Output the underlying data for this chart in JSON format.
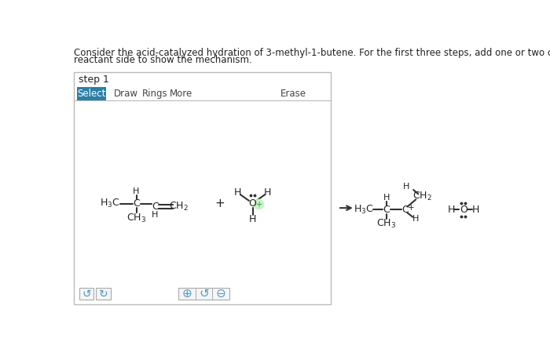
{
  "title_line1": "Consider the acid-catalyzed hydration of 3-methyl-1-butene. For the first three steps, add one or two curved arrows to the",
  "title_line2": "reactant side to show the mechanism.",
  "step_label": "step 1",
  "select_color": "#2a7fa5",
  "select_text_color": "#ffffff",
  "box_border_color": "#bbbbbb",
  "box_bg": "#ffffff",
  "background": "#ffffff",
  "text_color": "#222222",
  "bond_color": "#333333",
  "plus_color": "#2a9a2a",
  "plus_bg": "#c8f0c8",
  "toolbar_other_color": "#444444",
  "btn_border": "#aaaaaa",
  "btn_bg": "#f5f5f5",
  "btn_icon_color": "#4a9ac4"
}
